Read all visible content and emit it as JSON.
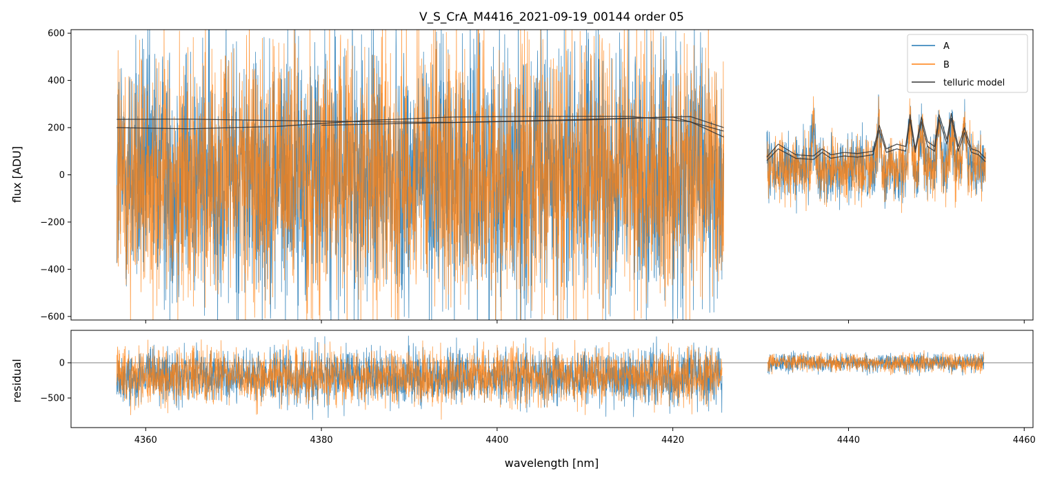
{
  "chart_data": [
    {
      "panel": "top",
      "type": "line",
      "title": "V_S_CrA_M4416_2021-09-19_00144  order 05",
      "xlabel": "",
      "ylabel": "flux [ADU]",
      "xlim": [
        4351.5,
        4461
      ],
      "ylim": [
        -615,
        615
      ],
      "x_ticks": [
        4360,
        4380,
        4400,
        4420,
        4440,
        4460
      ],
      "y_ticks": [
        -600,
        -400,
        -200,
        0,
        200,
        400,
        600
      ],
      "y_tick_labels": [
        "−600",
        "−400",
        "−200",
        "0",
        "200",
        "400",
        "600"
      ],
      "legend": {
        "position": "top-right",
        "entries": [
          {
            "label": "A",
            "color": "#1f77b4"
          },
          {
            "label": "B",
            "color": "#ff7f0e"
          },
          {
            "label": "telluric model",
            "color": "#333333"
          }
        ]
      },
      "segments": [
        {
          "x_start": 4356.7,
          "x_end": 4425.8,
          "mean": 0,
          "noise_amplitude": 500
        },
        {
          "x_start": 4430.7,
          "x_end": 4455.6,
          "mean": 30,
          "noise_amplitude": 120
        }
      ],
      "series": [
        {
          "name": "A",
          "color": "#1f77b4"
        },
        {
          "name": "B",
          "color": "#ff7f0e"
        },
        {
          "name": "telluric model",
          "color": "#333333",
          "curves": [
            {
              "x": [
                4356.7,
                4365,
                4375,
                4385,
                4395,
                4405,
                4415,
                4422,
                4425.8
              ],
              "y": [
                235,
                236,
                230,
                225,
                222,
                230,
                240,
                247,
                200
              ]
            },
            {
              "x": [
                4356.7,
                4365,
                4375,
                4385,
                4395,
                4405,
                4415,
                4422,
                4425.8
              ],
              "y": [
                200,
                195,
                205,
                230,
                245,
                248,
                248,
                225,
                160
              ]
            },
            {
              "x": [
                4380,
                4390,
                4400,
                4410,
                4420,
                4425.8
              ],
              "y": [
                210,
                218,
                225,
                232,
                245,
                185
              ]
            },
            {
              "x": [
                4430.7,
                4432,
                4434,
                4436,
                4437,
                4438,
                4439.5,
                4441,
                4442.8,
                4443.5,
                4444.3,
                4445.5,
                4446.5,
                4447,
                4447.6,
                4448.3,
                4449,
                4449.8,
                4450.3,
                4451.2,
                4451.7,
                4452.5,
                4453.2,
                4454,
                4454.8,
                4455.6
              ],
              "y": [
                75,
                130,
                85,
                80,
                110,
                85,
                95,
                90,
                100,
                210,
                110,
                130,
                120,
                255,
                110,
                245,
                140,
                120,
                255,
                150,
                260,
                120,
                200,
                110,
                100,
                70
              ]
            },
            {
              "x": [
                4430.7,
                4432,
                4434,
                4436,
                4437,
                4438,
                4439.5,
                4441,
                4442.8,
                4443.5,
                4444.3,
                4445.5,
                4446.5,
                4447,
                4447.6,
                4448.3,
                4449,
                4449.8,
                4450.3,
                4451.2,
                4451.7,
                4452.5,
                4453.2,
                4454,
                4454.8,
                4455.6
              ],
              "y": [
                60,
                110,
                70,
                65,
                95,
                70,
                80,
                75,
                85,
                190,
                95,
                110,
                100,
                235,
                95,
                225,
                120,
                100,
                235,
                130,
                240,
                100,
                180,
                95,
                85,
                55
              ]
            }
          ]
        }
      ]
    },
    {
      "panel": "bottom",
      "type": "line",
      "title": "",
      "xlabel": "wavelength [nm]",
      "ylabel": "residual",
      "xlim": [
        4351.5,
        4461
      ],
      "ylim": [
        -920,
        460
      ],
      "x_ticks": [
        4360,
        4380,
        4400,
        4420,
        4440,
        4460
      ],
      "x_tick_labels": [
        "4360",
        "4380",
        "4400",
        "4420",
        "4440",
        "4460"
      ],
      "y_ticks": [
        -500,
        0
      ],
      "y_tick_labels": [
        "−500",
        "0"
      ],
      "reference_line": 0,
      "segments": [
        {
          "x_start": 4356.7,
          "x_end": 4425.6,
          "mean": -200,
          "noise_amplitude": 350
        },
        {
          "x_start": 4430.8,
          "x_end": 4455.4,
          "mean": 0,
          "noise_amplitude": 120
        }
      ],
      "series": [
        {
          "name": "A",
          "color": "#1f77b4"
        },
        {
          "name": "B",
          "color": "#ff7f0e"
        }
      ]
    }
  ]
}
